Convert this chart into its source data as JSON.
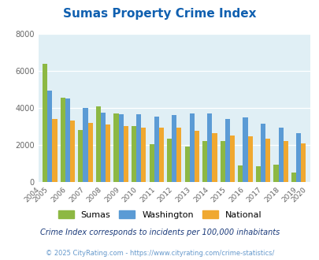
{
  "title": "Sumas Property Crime Index",
  "years": [
    2005,
    2006,
    2007,
    2008,
    2009,
    2010,
    2011,
    2012,
    2013,
    2014,
    2015,
    2016,
    2017,
    2018,
    2019
  ],
  "sumas": [
    6400,
    4550,
    2800,
    4100,
    3700,
    3000,
    2050,
    2350,
    1900,
    2200,
    2200,
    900,
    850,
    950,
    500
  ],
  "washington": [
    4950,
    4500,
    4000,
    3750,
    3650,
    3650,
    3550,
    3600,
    3700,
    3700,
    3400,
    3500,
    3150,
    2950,
    2650
  ],
  "national": [
    3400,
    3300,
    3200,
    3100,
    3020,
    2950,
    2950,
    2930,
    2750,
    2620,
    2490,
    2450,
    2360,
    2200,
    2100
  ],
  "sumas_color": "#8db843",
  "washington_color": "#5b9bd5",
  "national_color": "#f0a830",
  "bg_color": "#e0eff5",
  "ylim": [
    0,
    8000
  ],
  "yticks": [
    0,
    2000,
    4000,
    6000,
    8000
  ],
  "xtick_years": [
    "2004",
    "2005",
    "2006",
    "2007",
    "2008",
    "2009",
    "2010",
    "2011",
    "2012",
    "2013",
    "2014",
    "2015",
    "2016",
    "2017",
    "2018",
    "2019",
    "2020"
  ],
  "legend_labels": [
    "Sumas",
    "Washington",
    "National"
  ],
  "footnote1": "Crime Index corresponds to incidents per 100,000 inhabitants",
  "footnote2": "© 2025 CityRating.com - https://www.cityrating.com/crime-statistics/",
  "title_color": "#1060b0",
  "footnote1_color": "#1a3a7a",
  "footnote2_color": "#6699cc"
}
